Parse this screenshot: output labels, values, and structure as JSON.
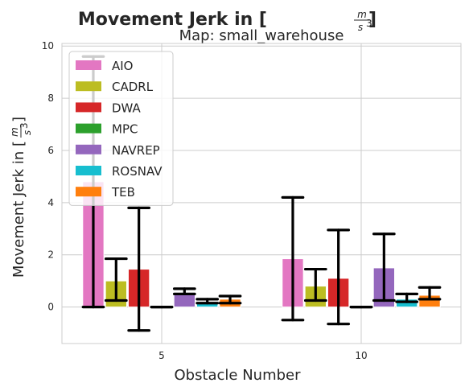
{
  "chart_data": {
    "type": "bar",
    "title": "Movement Jerk in [m/s³]",
    "title_prefix": "Movement Jerk in [",
    "title_suffix": "]",
    "unit_numerator": "m",
    "unit_denominator": "s",
    "unit_exponent": "3",
    "subtitle": "Map: small_warehouse",
    "xlabel": "Obstacle Number",
    "ylabel_prefix": "Movement Jerk in [",
    "ylabel_suffix": "]",
    "categories": [
      "5",
      "10"
    ],
    "ylim": [
      -1.4,
      10.1
    ],
    "yticks": [
      0,
      2,
      4,
      6,
      8,
      10
    ],
    "ytick_labels": [
      "0",
      "2",
      "4",
      "6",
      "8",
      "10"
    ],
    "grid": true,
    "legend_position": "top-left",
    "series": [
      {
        "name": "AIO",
        "color": "#e377c2",
        "values": [
          4.8,
          1.85
        ],
        "err_low": [
          0.0,
          -0.5
        ],
        "err_high": [
          9.6,
          4.2
        ]
      },
      {
        "name": "CADRL",
        "color": "#bcbd22",
        "values": [
          1.0,
          0.8
        ],
        "err_low": [
          0.25,
          0.25
        ],
        "err_high": [
          1.85,
          1.45
        ]
      },
      {
        "name": "DWA",
        "color": "#d62728",
        "values": [
          1.45,
          1.1
        ],
        "err_low": [
          -0.9,
          -0.65
        ],
        "err_high": [
          3.8,
          2.95
        ]
      },
      {
        "name": "MPC",
        "color": "#2ca02c",
        "values": [
          0.0,
          0.0
        ],
        "err_low": [
          0.0,
          0.0
        ],
        "err_high": [
          0.0,
          0.0
        ]
      },
      {
        "name": "NAVREP",
        "color": "#9467bd",
        "values": [
          0.55,
          1.5
        ],
        "err_low": [
          0.5,
          0.25
        ],
        "err_high": [
          0.7,
          2.8
        ]
      },
      {
        "name": "ROSNAV",
        "color": "#17becf",
        "values": [
          0.2,
          0.3
        ],
        "err_low": [
          0.15,
          0.2
        ],
        "err_high": [
          0.3,
          0.5
        ]
      },
      {
        "name": "TEB",
        "color": "#ff7f0e",
        "values": [
          0.3,
          0.45
        ],
        "err_low": [
          0.15,
          0.3
        ],
        "err_high": [
          0.42,
          0.75
        ]
      }
    ]
  }
}
